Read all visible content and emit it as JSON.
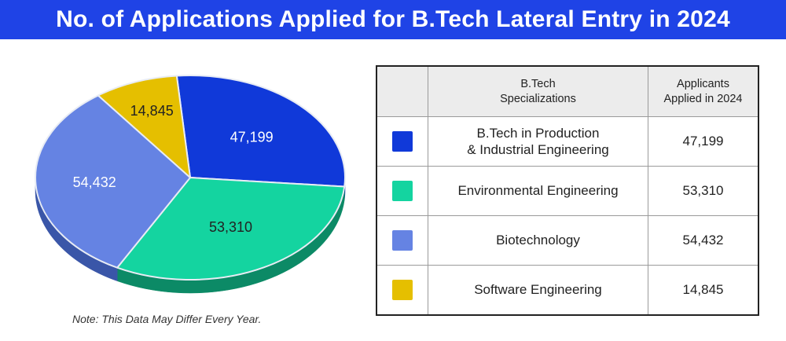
{
  "title": "No. of Applications Applied for B.Tech Lateral Entry in 2024",
  "note": "Note: This Data May Differ Every Year.",
  "table": {
    "headers": [
      "",
      "B.Tech\nSpecializations",
      "Applicants\nApplied in 2024"
    ],
    "rows": [
      {
        "name": "B.Tech in Production\n& Industrial Engineering",
        "value": "47,199",
        "color": "#1039d9"
      },
      {
        "name": "Environmental Engineering",
        "value": "53,310",
        "color": "#14d4a0"
      },
      {
        "name": "Biotechnology",
        "value": "54,432",
        "color": "#6583e3"
      },
      {
        "name": "Software Engineering",
        "value": "14,845",
        "color": "#e5bf00"
      }
    ]
  },
  "chart_data": {
    "type": "pie",
    "slices": [
      {
        "label": "B.Tech in Production & Industrial Engineering",
        "value": 47199,
        "display": "47,199",
        "color": "#1039d9",
        "side": "#0a2aa3"
      },
      {
        "label": "Environmental Engineering",
        "value": 53310,
        "display": "53,310",
        "color": "#14d4a0",
        "side": "#0c8a66"
      },
      {
        "label": "Biotechnology",
        "value": 54432,
        "display": "54,432",
        "color": "#6583e3",
        "side": "#3a56a8"
      },
      {
        "label": "Software Engineering",
        "value": 14845,
        "display": "14,845",
        "color": "#e5bf00",
        "side": "#a88a00"
      }
    ]
  }
}
